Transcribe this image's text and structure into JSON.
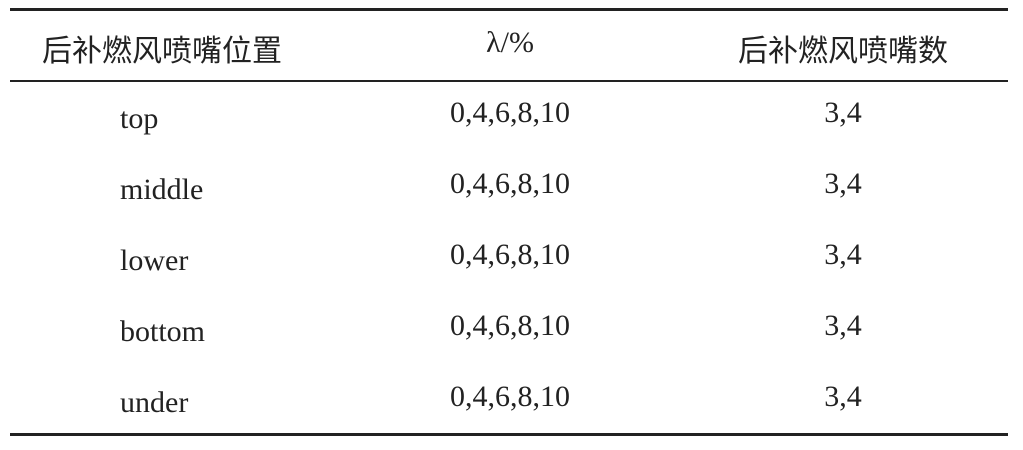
{
  "table": {
    "header": [
      "后补燃风喷嘴位置",
      "λ/%",
      "后补燃风喷嘴数"
    ],
    "rows": [
      [
        "top",
        "0,4,6,8,10",
        "3,4"
      ],
      [
        "middle",
        "0,4,6,8,10",
        "3,4"
      ],
      [
        "lower",
        "0,4,6,8,10",
        "3,4"
      ],
      [
        "bottom",
        "0,4,6,8,10",
        "3,4"
      ],
      [
        "under",
        "0,4,6,8,10",
        "3,4"
      ]
    ]
  }
}
